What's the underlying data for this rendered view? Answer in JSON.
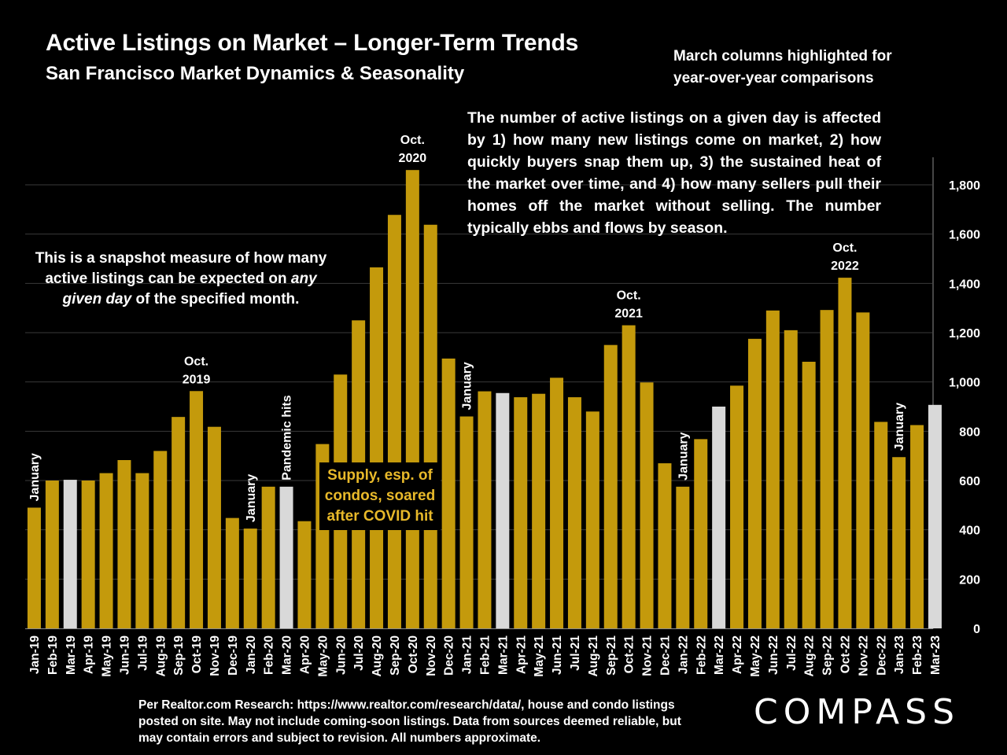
{
  "header": {
    "title": "Active Listings on Market – Longer-Term Trends",
    "subtitle": "San Francisco Market Dynamics & Seasonality"
  },
  "notes": {
    "march": "March columns highlighted for year-over-year comparisons",
    "active_listings": "The number of active listings on a given day is affected by 1) how many new listings come on market, 2) how quickly buyers snap them up, 3) the sustained heat of the market over time, and 4) how many sellers pull their homes off the market without selling. The number typically ebbs and flows by season.",
    "snapshot_pre": "This is a snapshot measure of how many active listings can be expected on ",
    "snapshot_em": "any given day",
    "snapshot_post": " of the specified month.",
    "supply": "Supply, esp. of condos, soared after COVID hit"
  },
  "footer": {
    "source": "Per Realtor.com Research:  https://www.realtor.com/research/data/, house and condo listings posted on site. May not include coming-soon listings. Data from sources deemed reliable, but may contain errors and subject to revision. All numbers approximate.",
    "logo": "COMPASS"
  },
  "colors": {
    "background": "#000000",
    "bar": "#c49a0c",
    "highlight": "#d9d9d9",
    "text": "#ffffff",
    "supply_text": "#e8b92a"
  },
  "chart_data": {
    "type": "bar",
    "categories": [
      "Jan-19",
      "Feb-19",
      "Mar-19",
      "Apr-19",
      "May-19",
      "Jun-19",
      "Jul-19",
      "Aug-19",
      "Sep-19",
      "Oct-19",
      "Nov-19",
      "Dec-19",
      "Jan-20",
      "Feb-20",
      "Mar-20",
      "Apr-20",
      "May-20",
      "Jun-20",
      "Jul-20",
      "Aug-20",
      "Sep-20",
      "Oct-20",
      "Nov-20",
      "Dec-20",
      "Jan-21",
      "Feb-21",
      "Mar-21",
      "Apr-21",
      "May-21",
      "Jun-21",
      "Jul-21",
      "Aug-21",
      "Sep-21",
      "Oct-21",
      "Nov-21",
      "Dec-21",
      "Jan-22",
      "Feb-22",
      "Mar-22",
      "Apr-22",
      "May-22",
      "Jun-22",
      "Jul-22",
      "Aug-22",
      "Sep-22",
      "Oct-22",
      "Nov-22",
      "Dec-22",
      "Jan-23",
      "Feb-23",
      "Mar-23"
    ],
    "values": [
      490,
      600,
      603,
      600,
      630,
      683,
      630,
      720,
      858,
      963,
      818,
      448,
      405,
      575,
      575,
      435,
      748,
      1030,
      1250,
      1465,
      1678,
      1860,
      1638,
      1095,
      860,
      962,
      955,
      938,
      952,
      1017,
      938,
      880,
      1150,
      1230,
      998,
      670,
      575,
      768,
      900,
      985,
      1175,
      1290,
      1210,
      1082,
      1292,
      1423,
      1282,
      838,
      695,
      825,
      907
    ],
    "highlighted": [
      "Mar-19",
      "Mar-20",
      "Mar-21",
      "Mar-22",
      "Mar-23"
    ],
    "ylim": [
      0,
      1900
    ],
    "yticks": [
      0,
      200,
      400,
      600,
      800,
      1000,
      1200,
      1400,
      1600,
      1800
    ],
    "ytick_labels": [
      "0",
      "200",
      "400",
      "600",
      "800",
      "1,000",
      "1,200",
      "1,400",
      "1,600",
      "1,800"
    ],
    "y_axis_side": "right",
    "grid": true,
    "annotations": [
      {
        "category": "Jan-19",
        "text": "January",
        "orientation": "vertical"
      },
      {
        "category": "Oct-19",
        "lines": [
          "Oct.",
          "2019"
        ],
        "orientation": "horizontal"
      },
      {
        "category": "Jan-20",
        "text": "January",
        "orientation": "vertical"
      },
      {
        "category": "Mar-20",
        "text": "Pandemic hits",
        "orientation": "vertical"
      },
      {
        "category": "Oct-20",
        "lines": [
          "Oct.",
          "2020"
        ],
        "orientation": "horizontal"
      },
      {
        "category": "Jan-21",
        "text": "January",
        "orientation": "vertical"
      },
      {
        "category": "Oct-21",
        "lines": [
          "Oct.",
          "2021"
        ],
        "orientation": "horizontal"
      },
      {
        "category": "Jan-22",
        "text": "January",
        "orientation": "vertical"
      },
      {
        "category": "Oct-22",
        "lines": [
          "Oct.",
          "2022"
        ],
        "orientation": "horizontal"
      },
      {
        "category": "Jan-23",
        "text": "January",
        "orientation": "vertical"
      }
    ]
  }
}
